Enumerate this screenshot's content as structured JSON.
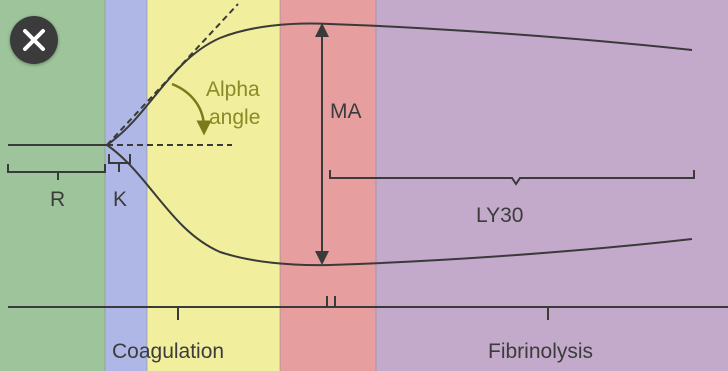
{
  "colors": {
    "r_phase": "#9dc49a",
    "k_phase": "#aeb7e6",
    "coagulation_phase": "#f1ee9d",
    "ma_phase": "#e69e9e",
    "fibrinolysis_phase": "#c3aacb",
    "curve": "#3a3a3a",
    "alpha_text": "#8a8a26",
    "label_text": "#3c3c3c",
    "close_button_bg": "#3b3b3b"
  },
  "labels": {
    "alpha_line1": "Alpha",
    "alpha_line2": "angle",
    "ma": "MA",
    "ly30": "LY30",
    "r": "R",
    "k": "K",
    "coagulation": "Coagulation",
    "fibrinolysis": "Fibrinolysis"
  },
  "icons": {
    "close": "close-icon"
  }
}
